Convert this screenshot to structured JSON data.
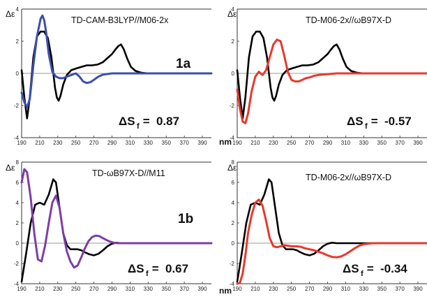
{
  "figure": {
    "unit_label": "nm",
    "y_symbol": "Δε",
    "delta_s_prefix": "ΔS",
    "delta_s_subscript": "f",
    "delta_s_eq": " = "
  },
  "chart_data": [
    {
      "type": "line",
      "method_label": "TD-CAM-B3LYP//M06-2x",
      "compound_label": "1a",
      "delta_sf": "0.87",
      "xlim": [
        190,
        400
      ],
      "ylim": [
        -4,
        4
      ],
      "xticks": [
        190,
        210,
        230,
        250,
        270,
        290,
        310,
        330,
        350,
        370,
        390
      ],
      "yticks": [
        -4,
        -2,
        0,
        2,
        4
      ],
      "grid": false,
      "series": [
        {
          "color": "#000000",
          "x": [
            190,
            193,
            196,
            199,
            203,
            207,
            211,
            215,
            219,
            223,
            227,
            229,
            231,
            233,
            236,
            240,
            245,
            250,
            256,
            262,
            268,
            274,
            280,
            286,
            290,
            294,
            297,
            300,
            303,
            307,
            311,
            316,
            322,
            330,
            340,
            350,
            360,
            370,
            380,
            390,
            400
          ],
          "y": [
            0.2,
            -1.5,
            -2.8,
            -1.5,
            1.0,
            2.3,
            2.6,
            2.6,
            2.2,
            1.0,
            -0.9,
            -1.5,
            -1.7,
            -1.4,
            -0.7,
            -0.1,
            0.2,
            0.3,
            0.4,
            0.5,
            0.5,
            0.55,
            0.7,
            1.0,
            1.2,
            1.5,
            1.7,
            1.8,
            1.5,
            0.9,
            0.4,
            0.15,
            0.05,
            0.0,
            0.0,
            0.0,
            0.0,
            0.0,
            0.0,
            0.0,
            0.0
          ]
        },
        {
          "color": "#3b4fae",
          "x": [
            190,
            193,
            196,
            199,
            203,
            207,
            211,
            213,
            215,
            217,
            220,
            224,
            228,
            232,
            236,
            240,
            245,
            250,
            254,
            258,
            262,
            266,
            270,
            275,
            280,
            290,
            300,
            310,
            320,
            330,
            350,
            370,
            390,
            400
          ],
          "y": [
            -1.2,
            -1.8,
            -2.1,
            -1.6,
            0.5,
            2.3,
            3.4,
            3.6,
            3.3,
            2.6,
            1.2,
            0.1,
            -0.2,
            -0.3,
            -0.3,
            -0.2,
            -0.1,
            0.0,
            -0.2,
            -0.5,
            -0.6,
            -0.55,
            -0.4,
            -0.2,
            -0.08,
            0.0,
            0.0,
            0.0,
            0.0,
            0.0,
            0.0,
            0.0,
            0.0,
            0.0
          ]
        }
      ]
    },
    {
      "type": "line",
      "method_label": "TD-M06-2x//ωB97X-D",
      "compound_label": "",
      "delta_sf": "-0.57",
      "xlim": [
        190,
        400
      ],
      "ylim": [
        -4,
        4
      ],
      "xticks": [
        190,
        210,
        230,
        250,
        270,
        290,
        310,
        330,
        350,
        370,
        390
      ],
      "yticks": [
        -4,
        -2,
        0,
        2,
        4
      ],
      "grid": false,
      "series": [
        {
          "color": "#000000",
          "x": [
            190,
            193,
            196,
            199,
            203,
            207,
            211,
            215,
            219,
            223,
            227,
            229,
            231,
            233,
            236,
            240,
            245,
            250,
            256,
            262,
            268,
            274,
            280,
            286,
            290,
            294,
            297,
            300,
            303,
            307,
            311,
            316,
            322,
            330,
            340,
            350,
            360,
            370,
            380,
            390,
            400
          ],
          "y": [
            0.2,
            -1.5,
            -2.8,
            -1.5,
            1.0,
            2.3,
            2.6,
            2.6,
            2.2,
            1.0,
            -0.9,
            -1.5,
            -1.7,
            -1.4,
            -0.7,
            -0.1,
            0.2,
            0.3,
            0.4,
            0.5,
            0.5,
            0.55,
            0.7,
            1.0,
            1.2,
            1.5,
            1.7,
            1.8,
            1.5,
            0.9,
            0.4,
            0.15,
            0.05,
            0.0,
            0.0,
            0.0,
            0.0,
            0.0,
            0.0,
            0.0,
            0.0
          ]
        },
        {
          "color": "#e8382d",
          "x": [
            190,
            193,
            196,
            199,
            202,
            206,
            210,
            214,
            218,
            222,
            226,
            230,
            234,
            238,
            242,
            246,
            250,
            254,
            258,
            262,
            266,
            270,
            275,
            280,
            290,
            300,
            310,
            320,
            330,
            350,
            370,
            390,
            400
          ],
          "y": [
            -1.0,
            -2.2,
            -3.0,
            -3.1,
            -2.5,
            -1.1,
            -0.2,
            0.1,
            -0.1,
            0.2,
            1.0,
            1.8,
            2.1,
            2.0,
            1.1,
            0.1,
            -0.4,
            -0.5,
            -0.5,
            -0.4,
            -0.3,
            -0.25,
            -0.15,
            -0.1,
            -0.05,
            0.0,
            0.0,
            0.0,
            0.0,
            0.0,
            0.0,
            0.0,
            0.0
          ]
        }
      ]
    },
    {
      "type": "line",
      "method_label": "TD-ωB97X-D//M11",
      "compound_label": "1b",
      "delta_sf": "0.67",
      "xlim": [
        190,
        400
      ],
      "ylim": [
        -4,
        8
      ],
      "xticks": [
        190,
        210,
        230,
        250,
        270,
        290,
        310,
        330,
        350,
        370,
        390
      ],
      "yticks": [
        -4,
        -2,
        0,
        2,
        4,
        6,
        8
      ],
      "grid": false,
      "series": [
        {
          "color": "#000000",
          "x": [
            190,
            195,
            200,
            205,
            210,
            215,
            220,
            225,
            228,
            232,
            236,
            240,
            244,
            248,
            252,
            256,
            260,
            265,
            270,
            275,
            280,
            285,
            290,
            295,
            300,
            310,
            320,
            330,
            350,
            370,
            390,
            400
          ],
          "y": [
            -3.8,
            -1.0,
            2.0,
            3.8,
            4.0,
            3.8,
            4.8,
            6.3,
            6.0,
            3.5,
            1.0,
            -0.2,
            -0.6,
            -0.6,
            -0.6,
            -0.7,
            -0.9,
            -1.1,
            -1.2,
            -1.05,
            -0.7,
            -0.3,
            -0.05,
            0.05,
            0.0,
            0.0,
            0.0,
            0.0,
            0.0,
            0.0,
            0.0,
            0.0
          ]
        },
        {
          "color": "#7b3fa8",
          "x": [
            190,
            193,
            196,
            200,
            204,
            208,
            212,
            216,
            220,
            224,
            228,
            232,
            236,
            240,
            244,
            248,
            252,
            256,
            260,
            264,
            268,
            272,
            276,
            280,
            284,
            288,
            292,
            296,
            300,
            305,
            310,
            320,
            330,
            350,
            370,
            390,
            400
          ],
          "y": [
            6.0,
            7.3,
            7.0,
            4.5,
            1.0,
            -1.6,
            -1.8,
            -0.2,
            2.0,
            4.0,
            4.7,
            3.5,
            1.0,
            -0.8,
            -1.8,
            -2.4,
            -2.2,
            -1.4,
            -0.5,
            0.2,
            0.6,
            0.75,
            0.7,
            0.5,
            0.3,
            0.15,
            0.05,
            0.0,
            0.0,
            0.0,
            0.0,
            0.0,
            0.0,
            0.0,
            0.0,
            0.0,
            0.0
          ]
        }
      ]
    },
    {
      "type": "line",
      "method_label": "TD-M06-2x//ωB97X-D",
      "compound_label": "",
      "delta_sf": "-0.34",
      "xlim": [
        190,
        400
      ],
      "ylim": [
        -4,
        8
      ],
      "xticks": [
        190,
        210,
        230,
        250,
        270,
        290,
        310,
        330,
        350,
        370,
        390
      ],
      "yticks": [
        -4,
        -2,
        0,
        2,
        4,
        6,
        8
      ],
      "grid": false,
      "series": [
        {
          "color": "#000000",
          "x": [
            190,
            195,
            200,
            205,
            210,
            215,
            220,
            225,
            228,
            232,
            236,
            240,
            244,
            248,
            252,
            256,
            260,
            265,
            270,
            275,
            280,
            285,
            290,
            295,
            300,
            310,
            320,
            330,
            350,
            370,
            390,
            400
          ],
          "y": [
            -3.8,
            -1.0,
            2.0,
            3.8,
            4.0,
            3.8,
            4.8,
            6.3,
            6.0,
            3.5,
            1.0,
            -0.2,
            -0.6,
            -0.6,
            -0.6,
            -0.7,
            -0.9,
            -1.1,
            -1.2,
            -1.05,
            -0.7,
            -0.3,
            -0.05,
            0.05,
            0.0,
            0.0,
            0.0,
            0.0,
            0.0,
            0.0,
            0.0,
            0.0
          ]
        },
        {
          "color": "#e8382d",
          "x": [
            190,
            193,
            196,
            199,
            202,
            206,
            210,
            214,
            218,
            222,
            226,
            230,
            234,
            238,
            242,
            246,
            250,
            255,
            260,
            265,
            270,
            275,
            280,
            285,
            290,
            295,
            300,
            305,
            310,
            315,
            320,
            325,
            330,
            340,
            350,
            370,
            390,
            400
          ],
          "y": [
            -4.0,
            -3.9,
            -3.0,
            -1.2,
            1.0,
            2.8,
            4.0,
            4.3,
            3.7,
            2.2,
            0.5,
            -0.3,
            -0.4,
            -0.3,
            -0.2,
            -0.25,
            -0.3,
            -0.3,
            -0.35,
            -0.5,
            -0.6,
            -0.7,
            -0.85,
            -1.0,
            -1.2,
            -1.35,
            -1.4,
            -1.3,
            -1.1,
            -0.8,
            -0.5,
            -0.25,
            -0.1,
            0.0,
            0.0,
            0.0,
            0.0,
            0.0
          ]
        }
      ]
    }
  ]
}
